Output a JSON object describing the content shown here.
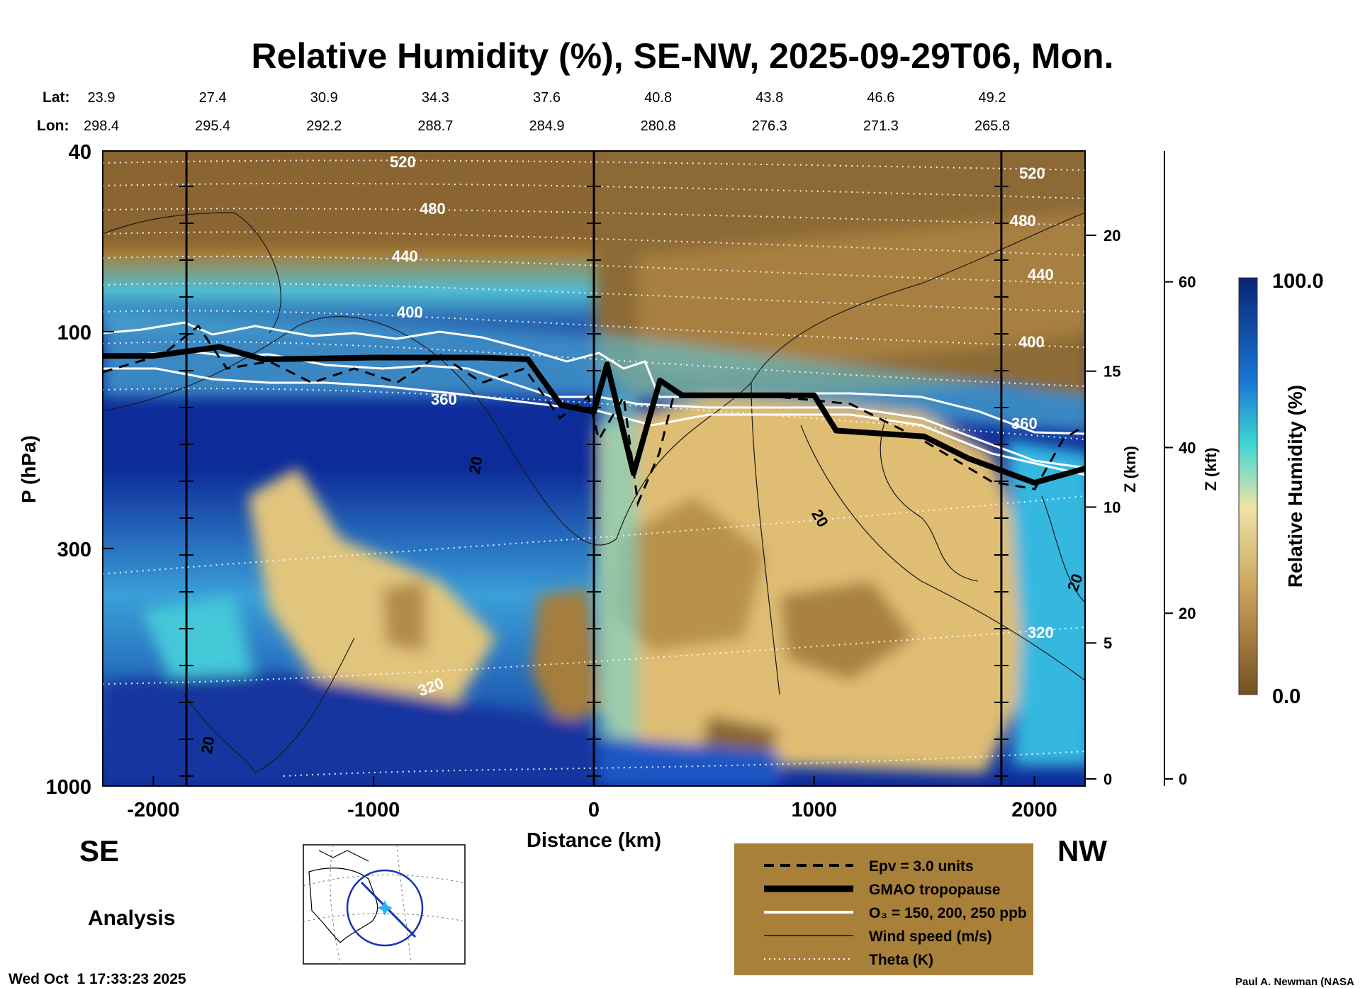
{
  "chart_data": {
    "type": "heatmap",
    "title": "Relative Humidity (%), SE-NW, 2025-09-29T06, Mon.",
    "xlabel": "Distance (km)",
    "ylabel": "P (hPa)",
    "z_km_label": "Z (km)",
    "z_kft_label": "Z (kft)",
    "xlim": [
      -2230,
      2230
    ],
    "ylim_hpa": [
      1000,
      40
    ],
    "x_ticks": [
      -2000,
      -1000,
      0,
      1000,
      2000
    ],
    "y_ticks": [
      40,
      100,
      300,
      1000
    ],
    "z_km_ticks": [
      0,
      5,
      10,
      15,
      20
    ],
    "z_kft_ticks": [
      0,
      20,
      40,
      60
    ],
    "lat_label": "Lat:",
    "lon_label": "Lon:",
    "lat_lon": [
      {
        "lat": "23.9",
        "lon": "298.4"
      },
      {
        "lat": "27.4",
        "lon": "295.4"
      },
      {
        "lat": "30.9",
        "lon": "292.2"
      },
      {
        "lat": "34.3",
        "lon": "288.7"
      },
      {
        "lat": "37.6",
        "lon": "284.9"
      },
      {
        "lat": "40.8",
        "lon": "280.8"
      },
      {
        "lat": "43.8",
        "lon": "276.3"
      },
      {
        "lat": "46.6",
        "lon": "271.3"
      },
      {
        "lat": "49.2",
        "lon": "265.8"
      }
    ],
    "vertical_markers_km": [
      -1850,
      0,
      1850
    ],
    "theta_levels_K": [
      320,
      360,
      400,
      440,
      480,
      520
    ],
    "wind_speed_labels_ms": [
      20,
      20,
      20,
      20
    ],
    "colorbar": {
      "label": "Relative Humidity (%)",
      "min": "0.0",
      "max": "100.0"
    },
    "direction_left": "SE",
    "direction_right": "NW",
    "legend": [
      {
        "label": "Epv = 3.0 units",
        "style": "dashed"
      },
      {
        "label": "GMAO tropopause",
        "style": "thick"
      },
      {
        "label": "O₃ = 150, 200, 250 ppb",
        "style": "white"
      },
      {
        "label": "Wind speed (m/s)",
        "style": "thin"
      },
      {
        "label": "Theta (K)",
        "style": "dotted"
      }
    ],
    "tropopause_profile": [
      {
        "x": -2230,
        "p": 113
      },
      {
        "x": -2000,
        "p": 113
      },
      {
        "x": -1700,
        "p": 108
      },
      {
        "x": -1500,
        "p": 115
      },
      {
        "x": -1000,
        "p": 114
      },
      {
        "x": -500,
        "p": 114
      },
      {
        "x": -300,
        "p": 115
      },
      {
        "x": -150,
        "p": 145
      },
      {
        "x": 0,
        "p": 150
      },
      {
        "x": 60,
        "p": 118
      },
      {
        "x": 180,
        "p": 205
      },
      {
        "x": 300,
        "p": 128
      },
      {
        "x": 400,
        "p": 138
      },
      {
        "x": 1000,
        "p": 138
      },
      {
        "x": 1100,
        "p": 165
      },
      {
        "x": 1500,
        "p": 170
      },
      {
        "x": 1700,
        "p": 190
      },
      {
        "x": 2000,
        "p": 215
      },
      {
        "x": 2230,
        "p": 200
      }
    ],
    "annotation_left": "Analysis",
    "timestamp": "Wed Oct  1 17:33:23 2025",
    "credit": "Paul A. Newman (NASA"
  },
  "colors": {
    "rh_dry": "#6b4a1c",
    "rh_mid": "#e7cf8a",
    "rh_cyan": "#3ed7d6",
    "rh_wet": "#0a2478",
    "legend_bg": "#a8803a"
  }
}
